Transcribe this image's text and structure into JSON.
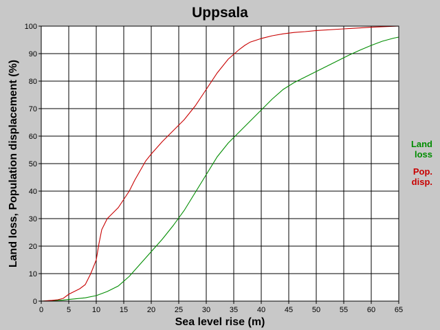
{
  "chart_data": {
    "type": "line",
    "title": "Uppsala",
    "xlabel": "Sea level rise (m)",
    "ylabel": "Land loss, Population displacement (%)",
    "xlim": [
      0,
      65
    ],
    "ylim": [
      0,
      100
    ],
    "xticks": [
      0,
      5,
      10,
      15,
      20,
      25,
      30,
      35,
      40,
      45,
      50,
      55,
      60,
      65
    ],
    "yticks": [
      0,
      10,
      20,
      30,
      40,
      50,
      60,
      70,
      80,
      90,
      100
    ],
    "grid": true,
    "legend_position": "right",
    "series": [
      {
        "name": "Land loss",
        "legend_lines": [
          "Land",
          "loss"
        ],
        "color": "#008c00",
        "x": [
          0,
          2,
          3,
          4,
          5,
          6,
          8,
          10,
          12,
          14,
          16,
          18,
          20,
          22,
          24,
          26,
          28,
          30,
          32,
          34,
          36,
          38,
          40,
          42,
          44,
          46,
          48,
          50,
          52,
          54,
          56,
          58,
          60,
          62,
          64,
          65
        ],
        "y": [
          0,
          0.2,
          0.3,
          0.4,
          0.6,
          0.8,
          1.2,
          2,
          3.5,
          5.5,
          9,
          13.5,
          18,
          22.5,
          27.5,
          33,
          39.5,
          46,
          52.5,
          57.5,
          61.5,
          65.5,
          69.5,
          73.5,
          77,
          79.5,
          81.5,
          83.5,
          85.5,
          87.5,
          89.5,
          91.3,
          93,
          94.5,
          95.6,
          96
        ]
      },
      {
        "name": "Pop. disp.",
        "legend_lines": [
          "Pop.",
          "disp."
        ],
        "color": "#c80000",
        "x": [
          0,
          2,
          3,
          4,
          5,
          6,
          7,
          8,
          9,
          10,
          10.5,
          11,
          12,
          13,
          14,
          15,
          16,
          17,
          18,
          19,
          20,
          22,
          24,
          26,
          28,
          30,
          32,
          34,
          36,
          37,
          38,
          40,
          42,
          44,
          46,
          48,
          50,
          55,
          60,
          65
        ],
        "y": [
          0,
          0.3,
          0.5,
          1,
          2.5,
          3.5,
          4.5,
          6,
          10,
          15,
          21,
          26,
          30,
          32,
          34,
          37,
          40,
          44,
          47.5,
          51,
          53.5,
          58,
          62,
          66,
          71,
          77,
          83,
          88,
          91.5,
          93,
          94.2,
          95.5,
          96.5,
          97.2,
          97.7,
          98,
          98.4,
          99,
          99.6,
          100
        ]
      }
    ]
  }
}
